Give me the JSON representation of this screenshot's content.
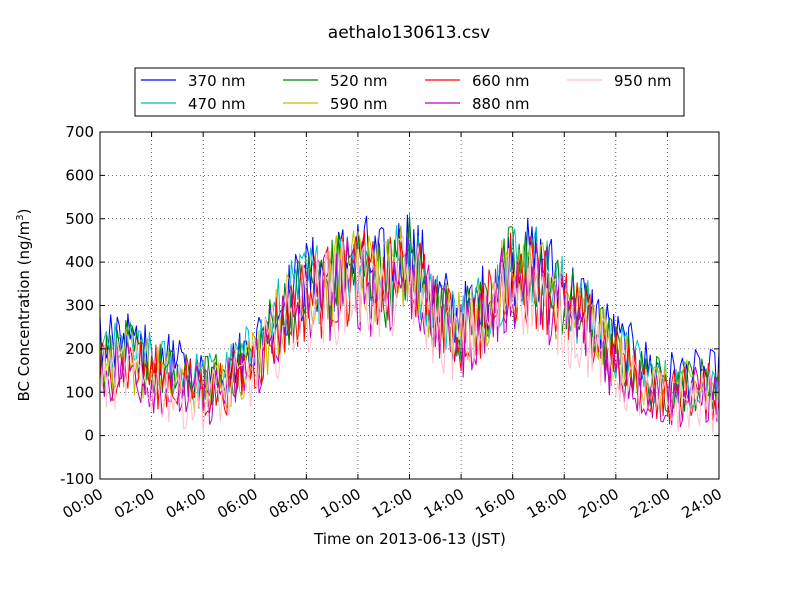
{
  "chart_data": {
    "type": "line",
    "title": "aethalo130613.csv",
    "xlabel": "Time on 2013-06-13 (JST)",
    "ylabel": "BC Concentration (ng/m³)",
    "ylabel_parts": {
      "main": "BC Concentration (ng/m",
      "sup": "3",
      "close": ")"
    },
    "xlim": [
      "00:00",
      "24:00"
    ],
    "ylim": [
      -100,
      700
    ],
    "grid": true,
    "legend_placement": "top-center",
    "x_ticks": [
      "00:00",
      "02:00",
      "04:00",
      "06:00",
      "08:00",
      "10:00",
      "12:00",
      "14:00",
      "16:00",
      "18:00",
      "20:00",
      "22:00",
      "24:00"
    ],
    "y_ticks": [
      -100,
      0,
      100,
      200,
      300,
      400,
      500,
      600,
      700
    ],
    "x": [
      "00:00",
      "01:00",
      "02:00",
      "03:00",
      "04:00",
      "05:00",
      "06:00",
      "07:00",
      "08:00",
      "09:00",
      "10:00",
      "11:00",
      "12:00",
      "13:00",
      "14:00",
      "15:00",
      "16:00",
      "17:00",
      "18:00",
      "19:00",
      "20:00",
      "21:00",
      "22:00",
      "23:00",
      "24:00"
    ],
    "series": [
      {
        "name": "370 nm",
        "color": "#0000ff",
        "values": [
          210,
          220,
          190,
          160,
          140,
          160,
          210,
          300,
          360,
          380,
          420,
          380,
          440,
          320,
          270,
          320,
          400,
          400,
          340,
          290,
          220,
          170,
          140,
          140,
          140
        ]
      },
      {
        "name": "470 nm",
        "color": "#00bfbf",
        "values": [
          180,
          200,
          170,
          150,
          130,
          150,
          200,
          290,
          350,
          370,
          400,
          360,
          420,
          300,
          260,
          310,
          400,
          390,
          320,
          270,
          200,
          150,
          120,
          120,
          130
        ]
      },
      {
        "name": "520 nm",
        "color": "#008000",
        "values": [
          170,
          190,
          160,
          130,
          120,
          140,
          190,
          280,
          340,
          360,
          390,
          350,
          410,
          290,
          250,
          300,
          390,
          380,
          310,
          260,
          190,
          140,
          110,
          120,
          120
        ]
      },
      {
        "name": "590 nm",
        "color": "#bfbf00",
        "values": [
          160,
          180,
          150,
          120,
          110,
          130,
          180,
          270,
          330,
          350,
          380,
          340,
          400,
          280,
          240,
          290,
          380,
          370,
          300,
          250,
          180,
          130,
          100,
          110,
          110
        ]
      },
      {
        "name": "660 nm",
        "color": "#ff0000",
        "values": [
          150,
          170,
          140,
          120,
          100,
          120,
          170,
          260,
          320,
          340,
          370,
          330,
          390,
          270,
          230,
          280,
          370,
          360,
          290,
          240,
          170,
          120,
          90,
          100,
          100
        ]
      },
      {
        "name": "880 nm",
        "color": "#bf00bf",
        "values": [
          140,
          160,
          130,
          100,
          90,
          110,
          160,
          250,
          310,
          330,
          360,
          320,
          380,
          260,
          220,
          270,
          360,
          350,
          280,
          230,
          160,
          110,
          80,
          90,
          90
        ]
      },
      {
        "name": "950 nm",
        "color": "#ffc0cb",
        "values": [
          130,
          150,
          120,
          90,
          80,
          100,
          150,
          240,
          300,
          320,
          350,
          310,
          370,
          250,
          210,
          260,
          350,
          340,
          270,
          220,
          150,
          100,
          70,
          80,
          80
        ]
      }
    ]
  }
}
